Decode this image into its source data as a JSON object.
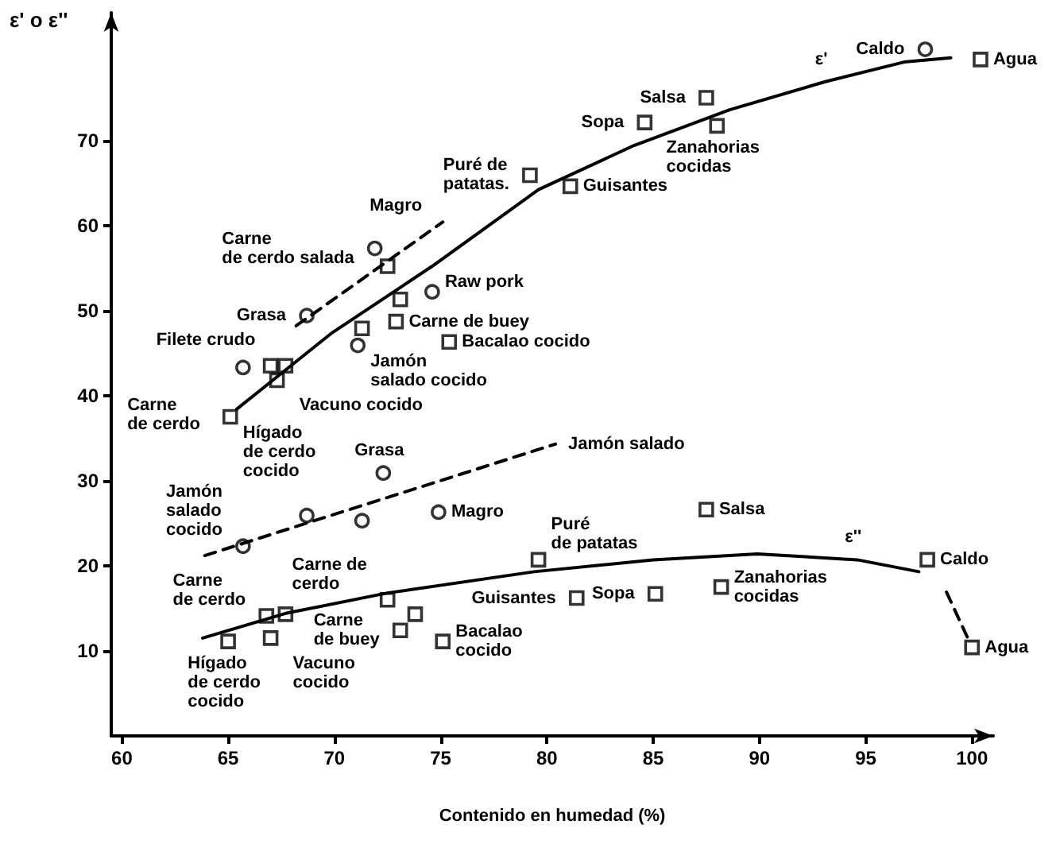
{
  "chart_data": {
    "type": "scatter",
    "xlabel": "Contenido en humedad (%)",
    "ylabel": "ε' o ε''",
    "xlim": [
      59.5,
      101
    ],
    "ylim": [
      0,
      85
    ],
    "xticks": [
      60,
      65,
      70,
      75,
      80,
      85,
      90,
      95,
      100
    ],
    "yticks": [
      10,
      20,
      30,
      40,
      50,
      60,
      70
    ],
    "series": [
      {
        "type": "scatter",
        "marker": "square",
        "color": "#000000",
        "x": [
          100.4,
          87.5,
          84.6,
          88.0,
          79.2,
          81.1,
          72.5,
          73.1,
          72.9,
          71.3,
          75.4,
          67.0,
          67.7,
          67.3,
          65.1
        ],
        "values": [
          79.5,
          75.0,
          72.1,
          71.7,
          65.9,
          64.6,
          55.2,
          51.3,
          48.7,
          47.9,
          46.3,
          43.5,
          43.5,
          41.8,
          37.5
        ]
      },
      {
        "type": "scatter",
        "marker": "circle",
        "color": "#000000",
        "x": [
          97.8,
          68.7,
          71.9,
          74.6,
          71.1,
          65.7
        ],
        "values": [
          80.7,
          49.4,
          57.3,
          52.2,
          45.9,
          43.3
        ]
      },
      {
        "type": "scatter",
        "marker": "square",
        "color": "#000000",
        "x": [
          97.9,
          100.0,
          87.5,
          79.6,
          81.4,
          85.1,
          88.2,
          75.1,
          73.8,
          73.1,
          72.5,
          67.7,
          66.8,
          67.0,
          65.0
        ],
        "values": [
          20.7,
          10.4,
          26.6,
          20.7,
          16.2,
          16.7,
          17.5,
          11.1,
          14.3,
          12.4,
          16.0,
          14.3,
          14.1,
          11.5,
          11.1
        ]
      },
      {
        "type": "scatter",
        "marker": "circle",
        "color": "#000000",
        "x": [
          72.3,
          74.9,
          68.7,
          71.3,
          65.7
        ],
        "values": [
          30.9,
          26.3,
          25.9,
          25.3,
          22.3
        ]
      },
      {
        "type": "line",
        "marker": "none",
        "line_style": "solid",
        "color": "#000000",
        "x": [
          65.4,
          69.9,
          74.6,
          79.6,
          84.1,
          88.6,
          93.1,
          96.8,
          99.0
        ],
        "values": [
          38.4,
          47.4,
          55.2,
          64.2,
          69.4,
          73.6,
          76.9,
          79.2,
          79.7
        ]
      },
      {
        "type": "line",
        "marker": "none",
        "line_style": "solid",
        "color": "#000000",
        "x": [
          63.8,
          67.7,
          72.5,
          79.4,
          85.0,
          89.9,
          94.6,
          97.5
        ],
        "values": [
          11.5,
          14.4,
          16.8,
          19.3,
          20.7,
          21.4,
          20.7,
          19.3
        ]
      },
      {
        "type": "line",
        "marker": "none",
        "line_style": "dashed",
        "color": "#000000",
        "x": [
          98.8,
          99.8
        ],
        "values": [
          16.9,
          11.5
        ]
      },
      {
        "type": "line",
        "marker": "none",
        "line_style": "dashed",
        "color": "#000000",
        "x": [
          68.2,
          75.1
        ],
        "values": [
          48.2,
          60.4
        ]
      },
      {
        "type": "line",
        "marker": "none",
        "line_style": "dashed",
        "color": "#000000",
        "x": [
          63.9,
          80.4
        ],
        "values": [
          21.2,
          34.3
        ]
      }
    ],
    "annotations": [
      {
        "text": "Caldo",
        "x": 97.8,
        "y": 80.7
      },
      {
        "text": "Agua",
        "x": 100.4,
        "y": 79.5
      },
      {
        "text": "ε'",
        "x": 93.1,
        "y": 76.9
      },
      {
        "text": "Salsa",
        "x": 87.5,
        "y": 75.0
      },
      {
        "text": "Sopa",
        "x": 84.6,
        "y": 72.1
      },
      {
        "text": "Zanahorias\ncocidas",
        "x": 88.0,
        "y": 71.7
      },
      {
        "text": "Puré de\npatatas.",
        "x": 79.2,
        "y": 65.9
      },
      {
        "text": "Guisantes",
        "x": 81.1,
        "y": 64.6
      },
      {
        "text": "Carne\nde cerdo salada",
        "x": 71.9,
        "y": 57.3
      },
      {
        "text": "Magro",
        "x": 75.1,
        "y": 60.4
      },
      {
        "text": "Grasa",
        "x": 68.7,
        "y": 49.4
      },
      {
        "text": "Raw pork",
        "x": 74.6,
        "y": 55.2
      },
      {
        "text": "Jamón\nsalado cocido",
        "x": 71.1,
        "y": 45.9
      },
      {
        "text": "Vacuno cocido",
        "x": 67.3,
        "y": 41.8
      },
      {
        "text": "Carne de buey",
        "x": 72.9,
        "y": 48.7
      },
      {
        "text": "Bacalao cocido",
        "x": 75.4,
        "y": 46.3
      },
      {
        "text": "Filete crudo",
        "x": 67.7,
        "y": 43.5
      },
      {
        "text": "Carne\nde cerdo",
        "x": 65.7,
        "y": 43.3
      },
      {
        "text": "Hígado\nde cerdo\ncocido",
        "x": 65.1,
        "y": 37.5
      },
      {
        "text": "Jamón\nsalado\ncocido",
        "x": 65.7,
        "y": 22.3
      },
      {
        "text": "Grasa",
        "x": 72.3,
        "y": 30.9
      },
      {
        "text": "Jamón salado",
        "x": 80.4,
        "y": 34.3
      },
      {
        "text": "Magro",
        "x": 74.9,
        "y": 26.3
      },
      {
        "text": "Salsa",
        "x": 87.5,
        "y": 26.6
      },
      {
        "text": "Puré\nde patatas",
        "x": 79.6,
        "y": 20.7
      },
      {
        "text": "ε''",
        "x": 94.6,
        "y": 20.7
      },
      {
        "text": "Caldo",
        "x": 97.9,
        "y": 20.7
      },
      {
        "text": "Carne de\ncerdo",
        "x": 72.5,
        "y": 16.0
      },
      {
        "text": "Carne\nde buey",
        "x": 73.1,
        "y": 12.4
      },
      {
        "text": "Carne\nde cerdo",
        "x": 66.8,
        "y": 14.1
      },
      {
        "text": "Guisantes",
        "x": 81.4,
        "y": 16.2
      },
      {
        "text": "Sopa",
        "x": 85.1,
        "y": 16.7
      },
      {
        "text": "Zanahorias\ncocidas",
        "x": 88.2,
        "y": 17.5
      },
      {
        "text": "Bacalao\ncocido",
        "x": 75.1,
        "y": 11.1
      },
      {
        "text": "Hígado\nde cerdo\ncocido",
        "x": 65.0,
        "y": 11.1
      },
      {
        "text": "Vacuno\ncocido",
        "x": 67.0,
        "y": 11.5
      },
      {
        "text": "Agua",
        "x": 100.0,
        "y": 10.4
      }
    ]
  }
}
